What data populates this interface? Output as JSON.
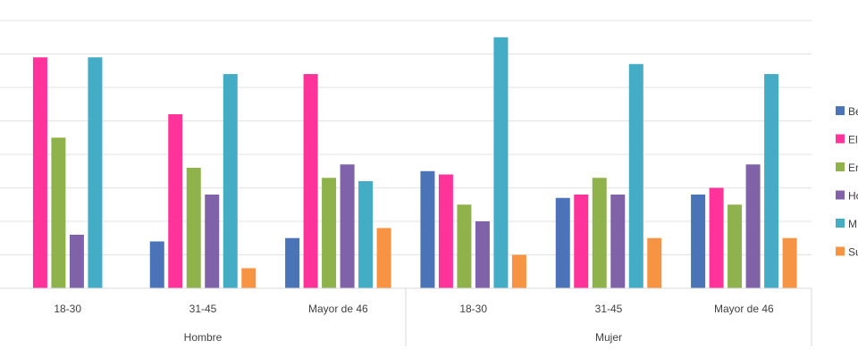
{
  "chart_data": {
    "type": "bar",
    "groups": [
      {
        "label": "Hombre",
        "categories": [
          "18-30",
          "31-45",
          "Mayor de 46"
        ]
      },
      {
        "label": "Mujer",
        "categories": [
          "18-30",
          "31-45",
          "Mayor de 46"
        ]
      }
    ],
    "series": [
      {
        "name": "Be",
        "color": "#4a74b7",
        "values": [
          null,
          1.4,
          1.5,
          3.5,
          2.7,
          2.8
        ]
      },
      {
        "name": "El",
        "color": "#ff3399",
        "values": [
          6.9,
          5.2,
          6.4,
          3.4,
          2.8,
          3.0
        ]
      },
      {
        "name": "Er",
        "color": "#8fb24d",
        "values": [
          4.5,
          3.6,
          3.3,
          2.5,
          3.3,
          2.5
        ]
      },
      {
        "name": "Ho",
        "color": "#7f62a8",
        "values": [
          1.6,
          2.8,
          3.7,
          2.0,
          2.8,
          3.7
        ]
      },
      {
        "name": "M",
        "color": "#45acc6",
        "values": [
          6.9,
          6.4,
          3.2,
          7.5,
          6.7,
          6.4
        ]
      },
      {
        "name": "Su",
        "color": "#f79443",
        "values": [
          null,
          0.6,
          1.8,
          1.0,
          1.5,
          1.5
        ]
      }
    ],
    "ylim": [
      0,
      8
    ],
    "grid": true,
    "legend_position": "right"
  }
}
